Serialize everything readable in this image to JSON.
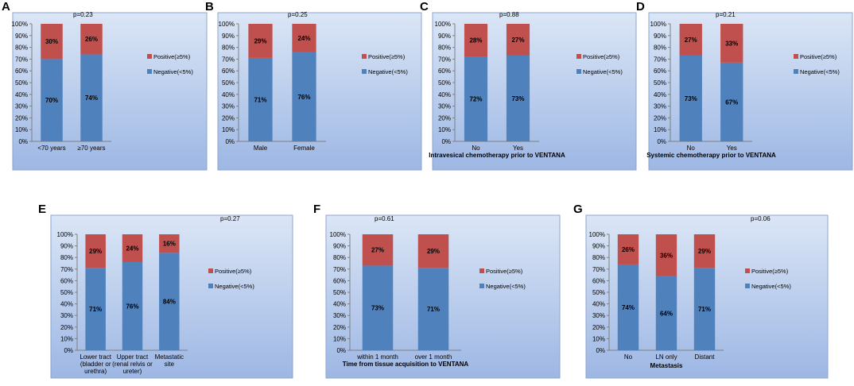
{
  "colors": {
    "positive": "#c0504d",
    "negative": "#4f81bd",
    "bg_top": "#dbe6f6",
    "bg_bottom": "#9db7e4",
    "border": "#8ea6cf"
  },
  "chart_data": [
    {
      "letter": "A",
      "type": "bar",
      "stacked": true,
      "categories": [
        "<70 years",
        "≥70 years"
      ],
      "xlabel": "",
      "pvalue": "p=0.23",
      "yticks": [
        "0%",
        "10%",
        "20%",
        "30%",
        "40%",
        "50%",
        "60%",
        "70%",
        "80%",
        "90%",
        "100%"
      ],
      "ylim": [
        0,
        100
      ],
      "series": [
        {
          "name": "Negative(<5%)",
          "values": [
            70,
            74
          ],
          "labels": [
            "70%",
            "74%"
          ]
        },
        {
          "name": "Positive(≥5%)",
          "values": [
            30,
            26
          ],
          "labels": [
            "30%",
            "26%"
          ]
        }
      ],
      "legend": [
        "Positive(≥5%)",
        "Negative(<5%)"
      ]
    },
    {
      "letter": "B",
      "type": "bar",
      "stacked": true,
      "categories": [
        "Male",
        "Female"
      ],
      "xlabel": "",
      "pvalue": "p=0.25",
      "yticks": [
        "0%",
        "10%",
        "20%",
        "30%",
        "40%",
        "50%",
        "60%",
        "70%",
        "80%",
        "90%",
        "100%"
      ],
      "ylim": [
        0,
        100
      ],
      "series": [
        {
          "name": "Negative(<5%)",
          "values": [
            71,
            76
          ],
          "labels": [
            "71%",
            "76%"
          ]
        },
        {
          "name": "Positive(≥5%)",
          "values": [
            29,
            24
          ],
          "labels": [
            "29%",
            "24%"
          ]
        }
      ],
      "legend": [
        "Positive(≥5%)",
        "Negative(<5%)"
      ]
    },
    {
      "letter": "C",
      "type": "bar",
      "stacked": true,
      "categories": [
        "No",
        "Yes"
      ],
      "xlabel": "Intravesical chemotherapy prior to VENTANA",
      "pvalue": "p=0.88",
      "yticks": [
        "0%",
        "10%",
        "20%",
        "30%",
        "40%",
        "50%",
        "60%",
        "70%",
        "80%",
        "90%",
        "100%"
      ],
      "ylim": [
        0,
        100
      ],
      "series": [
        {
          "name": "Negative(<5%)",
          "values": [
            72,
            73
          ],
          "labels": [
            "72%",
            "73%"
          ]
        },
        {
          "name": "Positive(≥5%)",
          "values": [
            28,
            27
          ],
          "labels": [
            "28%",
            "27%"
          ]
        }
      ],
      "legend": [
        "Positive(≥5%)",
        "Negative(<5%)"
      ]
    },
    {
      "letter": "D",
      "type": "bar",
      "stacked": true,
      "categories": [
        "No",
        "Yes"
      ],
      "xlabel": "Systemic chemotherapy prior to VENTANA",
      "pvalue": "p=0.21",
      "yticks": [
        "0%",
        "10%",
        "20%",
        "30%",
        "40%",
        "50%",
        "60%",
        "70%",
        "80%",
        "90%",
        "100%"
      ],
      "ylim": [
        0,
        100
      ],
      "series": [
        {
          "name": "Negative(<5%)",
          "values": [
            73,
            67
          ],
          "labels": [
            "73%",
            "67%"
          ]
        },
        {
          "name": "Positive(≥5%)",
          "values": [
            27,
            33
          ],
          "labels": [
            "27%",
            "33%"
          ]
        }
      ],
      "legend": [
        "Positive(≥5%)",
        "Negative(<5%)"
      ]
    },
    {
      "letter": "E",
      "type": "bar",
      "stacked": true,
      "categories": [
        "Lower tract (bladder or urethra)",
        "Upper tract (renal relvis or ureter)",
        "Metastatic site"
      ],
      "xlabel": "",
      "pvalue": "p=0.27",
      "yticks": [
        "0%",
        "10%",
        "20%",
        "30%",
        "40%",
        "50%",
        "60%",
        "70%",
        "80%",
        "90%",
        "100%"
      ],
      "ylim": [
        0,
        100
      ],
      "series": [
        {
          "name": "Negative(<5%)",
          "values": [
            71,
            76,
            84
          ],
          "labels": [
            "71%",
            "76%",
            "84%"
          ]
        },
        {
          "name": "Positive(≥5%)",
          "values": [
            29,
            24,
            16
          ],
          "labels": [
            "29%",
            "24%",
            "16%"
          ]
        }
      ],
      "legend": [
        "Positive(≥5%)",
        "Negative(<5%)"
      ]
    },
    {
      "letter": "F",
      "type": "bar",
      "stacked": true,
      "categories": [
        "within 1 month",
        "over 1 month"
      ],
      "xlabel": "Time from tissue acquisition to VENTANA",
      "pvalue": "p=0.61",
      "yticks": [
        "0%",
        "10%",
        "20%",
        "30%",
        "40%",
        "50%",
        "60%",
        "70%",
        "80%",
        "90%",
        "100%"
      ],
      "ylim": [
        0,
        100
      ],
      "series": [
        {
          "name": "Negative(<5%)",
          "values": [
            73,
            71
          ],
          "labels": [
            "73%",
            "71%"
          ]
        },
        {
          "name": "Positive(≥5%)",
          "values": [
            27,
            29
          ],
          "labels": [
            "27%",
            "29%"
          ]
        }
      ],
      "legend": [
        "Positive(≥5%)",
        "Negative(<5%)"
      ]
    },
    {
      "letter": "G",
      "type": "bar",
      "stacked": true,
      "categories": [
        "No",
        "LN only",
        "Distant"
      ],
      "xlabel": "Metastasis",
      "pvalue": "p=0.06",
      "yticks": [
        "0%",
        "10%",
        "20%",
        "30%",
        "40%",
        "50%",
        "60%",
        "70%",
        "80%",
        "90%",
        "100%"
      ],
      "ylim": [
        0,
        100
      ],
      "series": [
        {
          "name": "Negative(<5%)",
          "values": [
            74,
            64,
            71
          ],
          "labels": [
            "74%",
            "64%",
            "71%"
          ]
        },
        {
          "name": "Positive(≥5%)",
          "values": [
            26,
            36,
            29
          ],
          "labels": [
            "26%",
            "36%",
            "29%"
          ]
        }
      ],
      "legend": [
        "Positive(≥5%)",
        "Negative(<5%)"
      ]
    }
  ]
}
